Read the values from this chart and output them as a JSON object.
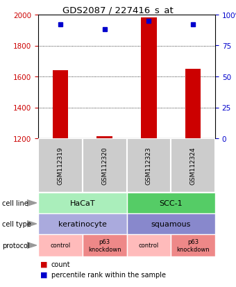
{
  "title": "GDS2087 / 227416_s_at",
  "samples": [
    "GSM112319",
    "GSM112320",
    "GSM112323",
    "GSM112324"
  ],
  "red_counts": [
    1640,
    1215,
    1980,
    1650
  ],
  "blue_percentiles_pct": [
    92,
    88,
    95,
    92
  ],
  "ylim_left": [
    1200,
    2000
  ],
  "ylim_right": [
    0,
    100
  ],
  "left_ticks": [
    1200,
    1400,
    1600,
    1800,
    2000
  ],
  "right_ticks": [
    0,
    25,
    50,
    75,
    100
  ],
  "right_tick_labels": [
    "0",
    "25",
    "50",
    "75",
    "100%"
  ],
  "left_color": "#cc0000",
  "right_color": "#0000cc",
  "bar_color": "#cc0000",
  "dot_color": "#0000cc",
  "cell_line_hacat_color": "#aaeebb",
  "cell_line_scc_color": "#55cc66",
  "cell_type_kera_color": "#aaaadd",
  "cell_type_squa_color": "#8888cc",
  "protocol_color_light": "#ffbbbb",
  "protocol_color_dark": "#ee8888",
  "row_labels": [
    "cell line",
    "cell type",
    "protocol"
  ],
  "legend_count_color": "#cc0000",
  "legend_pct_color": "#0000cc",
  "bar_width": 0.35,
  "fig_width": 3.4,
  "fig_height": 4.14,
  "dpi": 100
}
